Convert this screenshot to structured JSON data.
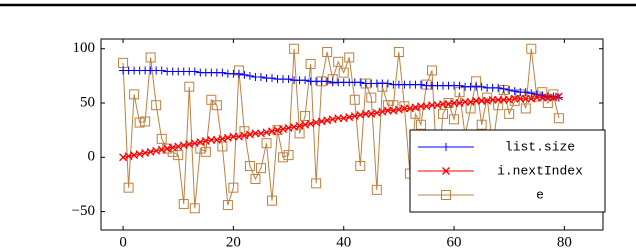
{
  "chart_data": {
    "type": "line",
    "x": [
      0,
      1,
      2,
      3,
      4,
      5,
      6,
      7,
      8,
      9,
      10,
      11,
      12,
      13,
      14,
      15,
      16,
      17,
      18,
      19,
      20,
      21,
      22,
      23,
      24,
      25,
      26,
      27,
      28,
      29,
      30,
      31,
      32,
      33,
      34,
      35,
      36,
      37,
      38,
      39,
      40,
      41,
      42,
      43,
      44,
      45,
      46,
      47,
      48,
      49,
      50,
      51,
      52,
      53,
      54,
      55,
      56,
      57,
      58,
      59,
      60,
      61,
      62,
      63,
      64,
      65,
      66,
      67,
      68,
      69,
      70,
      71,
      72,
      73,
      74,
      75,
      76,
      77,
      78,
      79
    ],
    "series": [
      {
        "name": "list.size",
        "color": "#0000ff",
        "marker": "plus",
        "values": [
          80,
          80,
          80,
          80,
          80,
          80,
          80,
          80,
          79,
          79,
          79,
          79,
          79,
          79,
          78,
          78,
          78,
          78,
          78,
          77,
          77,
          77,
          76,
          75,
          74,
          74,
          73,
          73,
          72,
          72,
          72,
          71,
          71,
          71,
          70,
          70,
          70,
          70,
          69,
          69,
          69,
          69,
          69,
          69,
          68,
          68,
          68,
          68,
          68,
          67,
          67,
          67,
          67,
          67,
          67,
          66,
          66,
          66,
          66,
          66,
          66,
          66,
          65,
          65,
          65,
          65,
          64,
          64,
          64,
          63,
          62,
          61,
          60,
          60,
          59,
          58,
          57,
          56,
          56,
          55
        ]
      },
      {
        "name": "i.nextIndex",
        "color": "#ff0000",
        "marker": "cross",
        "values": [
          0,
          1,
          2,
          3,
          4,
          5,
          6,
          7,
          8,
          9,
          10,
          11,
          12,
          13,
          14,
          15,
          16,
          16,
          17,
          18,
          19,
          19,
          20,
          21,
          22,
          22,
          23,
          24,
          25,
          26,
          27,
          28,
          29,
          30,
          31,
          32,
          33,
          34,
          35,
          36,
          36,
          37,
          38,
          39,
          40,
          40,
          41,
          42,
          43,
          43,
          44,
          45,
          45,
          46,
          47,
          47,
          48,
          48,
          49,
          49,
          50,
          50,
          51,
          51,
          52,
          52,
          52,
          53,
          53,
          53,
          53,
          54,
          54,
          54,
          54,
          55,
          55,
          55,
          55,
          56
        ]
      },
      {
        "name": "e",
        "color": "#bf8040",
        "marker": "square",
        "values": [
          87,
          -28,
          58,
          32,
          33,
          92,
          48,
          17,
          8,
          5,
          2,
          -43,
          65,
          -47,
          8,
          5,
          53,
          48,
          10,
          -44,
          -28,
          80,
          24,
          -8,
          -20,
          -10,
          13,
          -40,
          25,
          0,
          2,
          100,
          22,
          38,
          86,
          -24,
          70,
          97,
          72,
          88,
          78,
          92,
          53,
          -8,
          68,
          55,
          -30,
          65,
          48,
          48,
          97,
          47,
          -15,
          40,
          30,
          67,
          80,
          -20,
          40,
          50,
          35,
          60,
          20,
          45,
          70,
          30,
          55,
          10,
          48,
          62,
          40,
          52,
          58,
          45,
          100,
          56,
          60,
          50,
          58,
          36
        ]
      }
    ],
    "xlim": [
      -4,
      87
    ],
    "ylim": [
      -67,
      109
    ],
    "xticks": [
      0,
      20,
      40,
      60,
      80
    ],
    "yticks": [
      {
        "value": -50,
        "label": "−50"
      },
      0,
      50,
      100
    ],
    "legend": "south east"
  }
}
